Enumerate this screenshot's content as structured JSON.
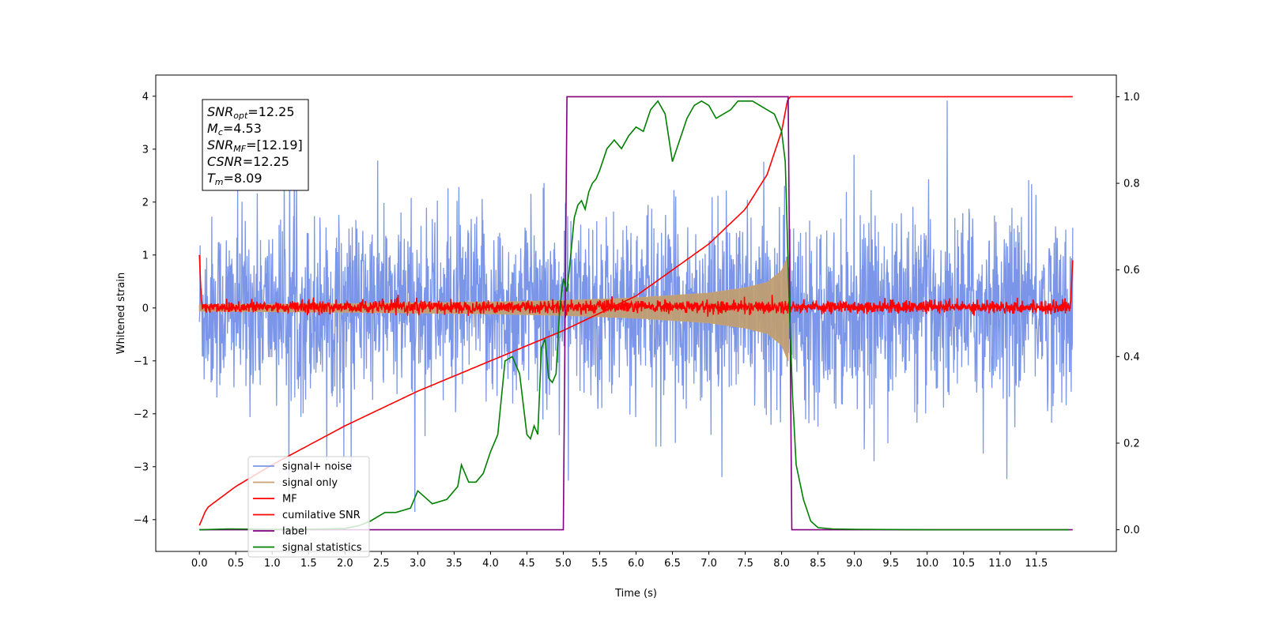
{
  "chart_data": {
    "type": "line",
    "xlabel": "Time (s)",
    "ylabel": "Whitened strain",
    "xlim": [
      -0.6,
      12.6
    ],
    "ylim": [
      -4.6,
      4.4
    ],
    "y2lim": [
      -0.05,
      1.05
    ],
    "xticks": [
      0.0,
      0.5,
      1.0,
      1.5,
      2.0,
      2.5,
      3.0,
      3.5,
      4.0,
      4.5,
      5.0,
      5.5,
      6.0,
      6.5,
      7.0,
      7.5,
      8.0,
      8.5,
      9.0,
      9.5,
      10.0,
      10.5,
      11.0,
      11.5
    ],
    "xtick_labels": [
      "0.0",
      "0.5",
      "1.0",
      "1.5",
      "2.0",
      "2.5",
      "3.0",
      "3.5",
      "4.0",
      "4.5",
      "5.0",
      "5.5",
      "6.0",
      "6.5",
      "7.0",
      "7.5",
      "8.0",
      "8.5",
      "9.0",
      "9.5",
      "10.0",
      "10.5",
      "11.0",
      "11.5"
    ],
    "yticks": [
      -4,
      -3,
      -2,
      -1,
      0,
      1,
      2,
      3,
      4
    ],
    "ytick_labels": [
      "−4",
      "−3",
      "−2",
      "−1",
      "0",
      "1",
      "2",
      "3",
      "4"
    ],
    "y2ticks": [
      0.0,
      0.2,
      0.4,
      0.6,
      0.8,
      1.0
    ],
    "y2tick_labels": [
      "0.0",
      "0.2",
      "0.4",
      "0.6",
      "0.8",
      "1.0"
    ],
    "legend_position": "lower-left",
    "series": [
      {
        "name": "signal+ noise",
        "color": "#7b96e8",
        "axis": "left",
        "kind": "noise",
        "x_range": [
          0.0,
          12.0
        ],
        "approx_std": 0.85,
        "approx_peak": 4.0
      },
      {
        "name": "signal only",
        "color": "#c8a070",
        "axis": "left",
        "kind": "chirp",
        "x_range": [
          0.0,
          8.09
        ],
        "envelope": {
          "x": [
            0.0,
            2.0,
            4.0,
            5.0,
            6.0,
            7.0,
            7.5,
            7.8,
            8.0,
            8.09
          ],
          "amp": [
            0.06,
            0.08,
            0.11,
            0.14,
            0.19,
            0.28,
            0.38,
            0.48,
            0.7,
            1.0
          ]
        }
      },
      {
        "name": "MF",
        "color": "#ff0000",
        "axis": "left",
        "kind": "mf_noise",
        "x_range": [
          0.0,
          12.0
        ],
        "approx_std": 0.06,
        "edge_values": [
          1.0,
          0.9
        ]
      },
      {
        "name": "cumilative SNR",
        "color": "#ff0000",
        "axis": "right",
        "x": [
          0.0,
          0.1,
          0.5,
          1.0,
          2.0,
          3.0,
          4.0,
          5.0,
          6.0,
          7.0,
          7.5,
          7.8,
          8.0,
          8.09,
          8.1,
          12.0
        ],
        "y": [
          0.01,
          0.05,
          0.1,
          0.15,
          0.24,
          0.32,
          0.39,
          0.46,
          0.54,
          0.66,
          0.74,
          0.82,
          0.92,
          1.0,
          1.0,
          1.0
        ]
      },
      {
        "name": "label",
        "color": "#800080",
        "axis": "right",
        "x": [
          0.0,
          5.0,
          5.05,
          8.09,
          8.14,
          12.0
        ],
        "y": [
          0.0,
          0.0,
          1.0,
          1.0,
          0.0,
          0.0
        ]
      },
      {
        "name": "signal statistics",
        "color": "#008000",
        "axis": "right",
        "x": [
          0.0,
          0.4,
          1.0,
          1.5,
          2.0,
          2.2,
          2.35,
          2.45,
          2.55,
          2.7,
          2.9,
          3.0,
          3.2,
          3.4,
          3.55,
          3.6,
          3.7,
          3.8,
          3.9,
          4.0,
          4.1,
          4.2,
          4.3,
          4.4,
          4.5,
          4.55,
          4.6,
          4.65,
          4.7,
          4.75,
          4.8,
          4.85,
          4.9,
          4.95,
          5.0,
          5.05,
          5.1,
          5.15,
          5.2,
          5.25,
          5.3,
          5.35,
          5.4,
          5.45,
          5.5,
          5.6,
          5.7,
          5.8,
          5.9,
          6.0,
          6.1,
          6.2,
          6.3,
          6.4,
          6.5,
          6.6,
          6.7,
          6.8,
          6.9,
          7.0,
          7.1,
          7.2,
          7.3,
          7.4,
          7.5,
          7.6,
          7.7,
          7.8,
          7.9,
          8.0,
          8.05,
          8.1,
          8.15,
          8.2,
          8.3,
          8.4,
          8.5,
          8.7,
          9.0,
          10.0,
          11.0,
          11.95
        ],
        "y": [
          0.0,
          0.002,
          0.001,
          0.001,
          0.003,
          0.01,
          0.02,
          0.03,
          0.04,
          0.04,
          0.05,
          0.09,
          0.06,
          0.07,
          0.1,
          0.15,
          0.11,
          0.11,
          0.13,
          0.18,
          0.22,
          0.39,
          0.4,
          0.36,
          0.22,
          0.21,
          0.24,
          0.22,
          0.42,
          0.44,
          0.35,
          0.34,
          0.36,
          0.51,
          0.58,
          0.55,
          0.63,
          0.72,
          0.75,
          0.76,
          0.74,
          0.78,
          0.8,
          0.81,
          0.83,
          0.88,
          0.9,
          0.88,
          0.91,
          0.93,
          0.92,
          0.97,
          0.99,
          0.96,
          0.85,
          0.9,
          0.95,
          0.98,
          0.99,
          0.98,
          0.95,
          0.96,
          0.97,
          0.99,
          0.99,
          0.99,
          0.98,
          0.97,
          0.96,
          0.92,
          0.85,
          0.55,
          0.31,
          0.15,
          0.07,
          0.02,
          0.005,
          0.002,
          0.001,
          0.0,
          0.0,
          0.0
        ]
      }
    ],
    "annotation": {
      "lines": [
        {
          "base": "SNR",
          "sub": "opt",
          "value": "=12.25"
        },
        {
          "base": "M",
          "sub": "c",
          "value": "=4.53"
        },
        {
          "base": "SNR",
          "sub": "MF",
          "value": "=[12.19]"
        },
        {
          "base": "CSNR",
          "sub": "",
          "value": "=12.25"
        },
        {
          "base": "T",
          "sub": "m",
          "value": "=8.09"
        }
      ]
    }
  }
}
